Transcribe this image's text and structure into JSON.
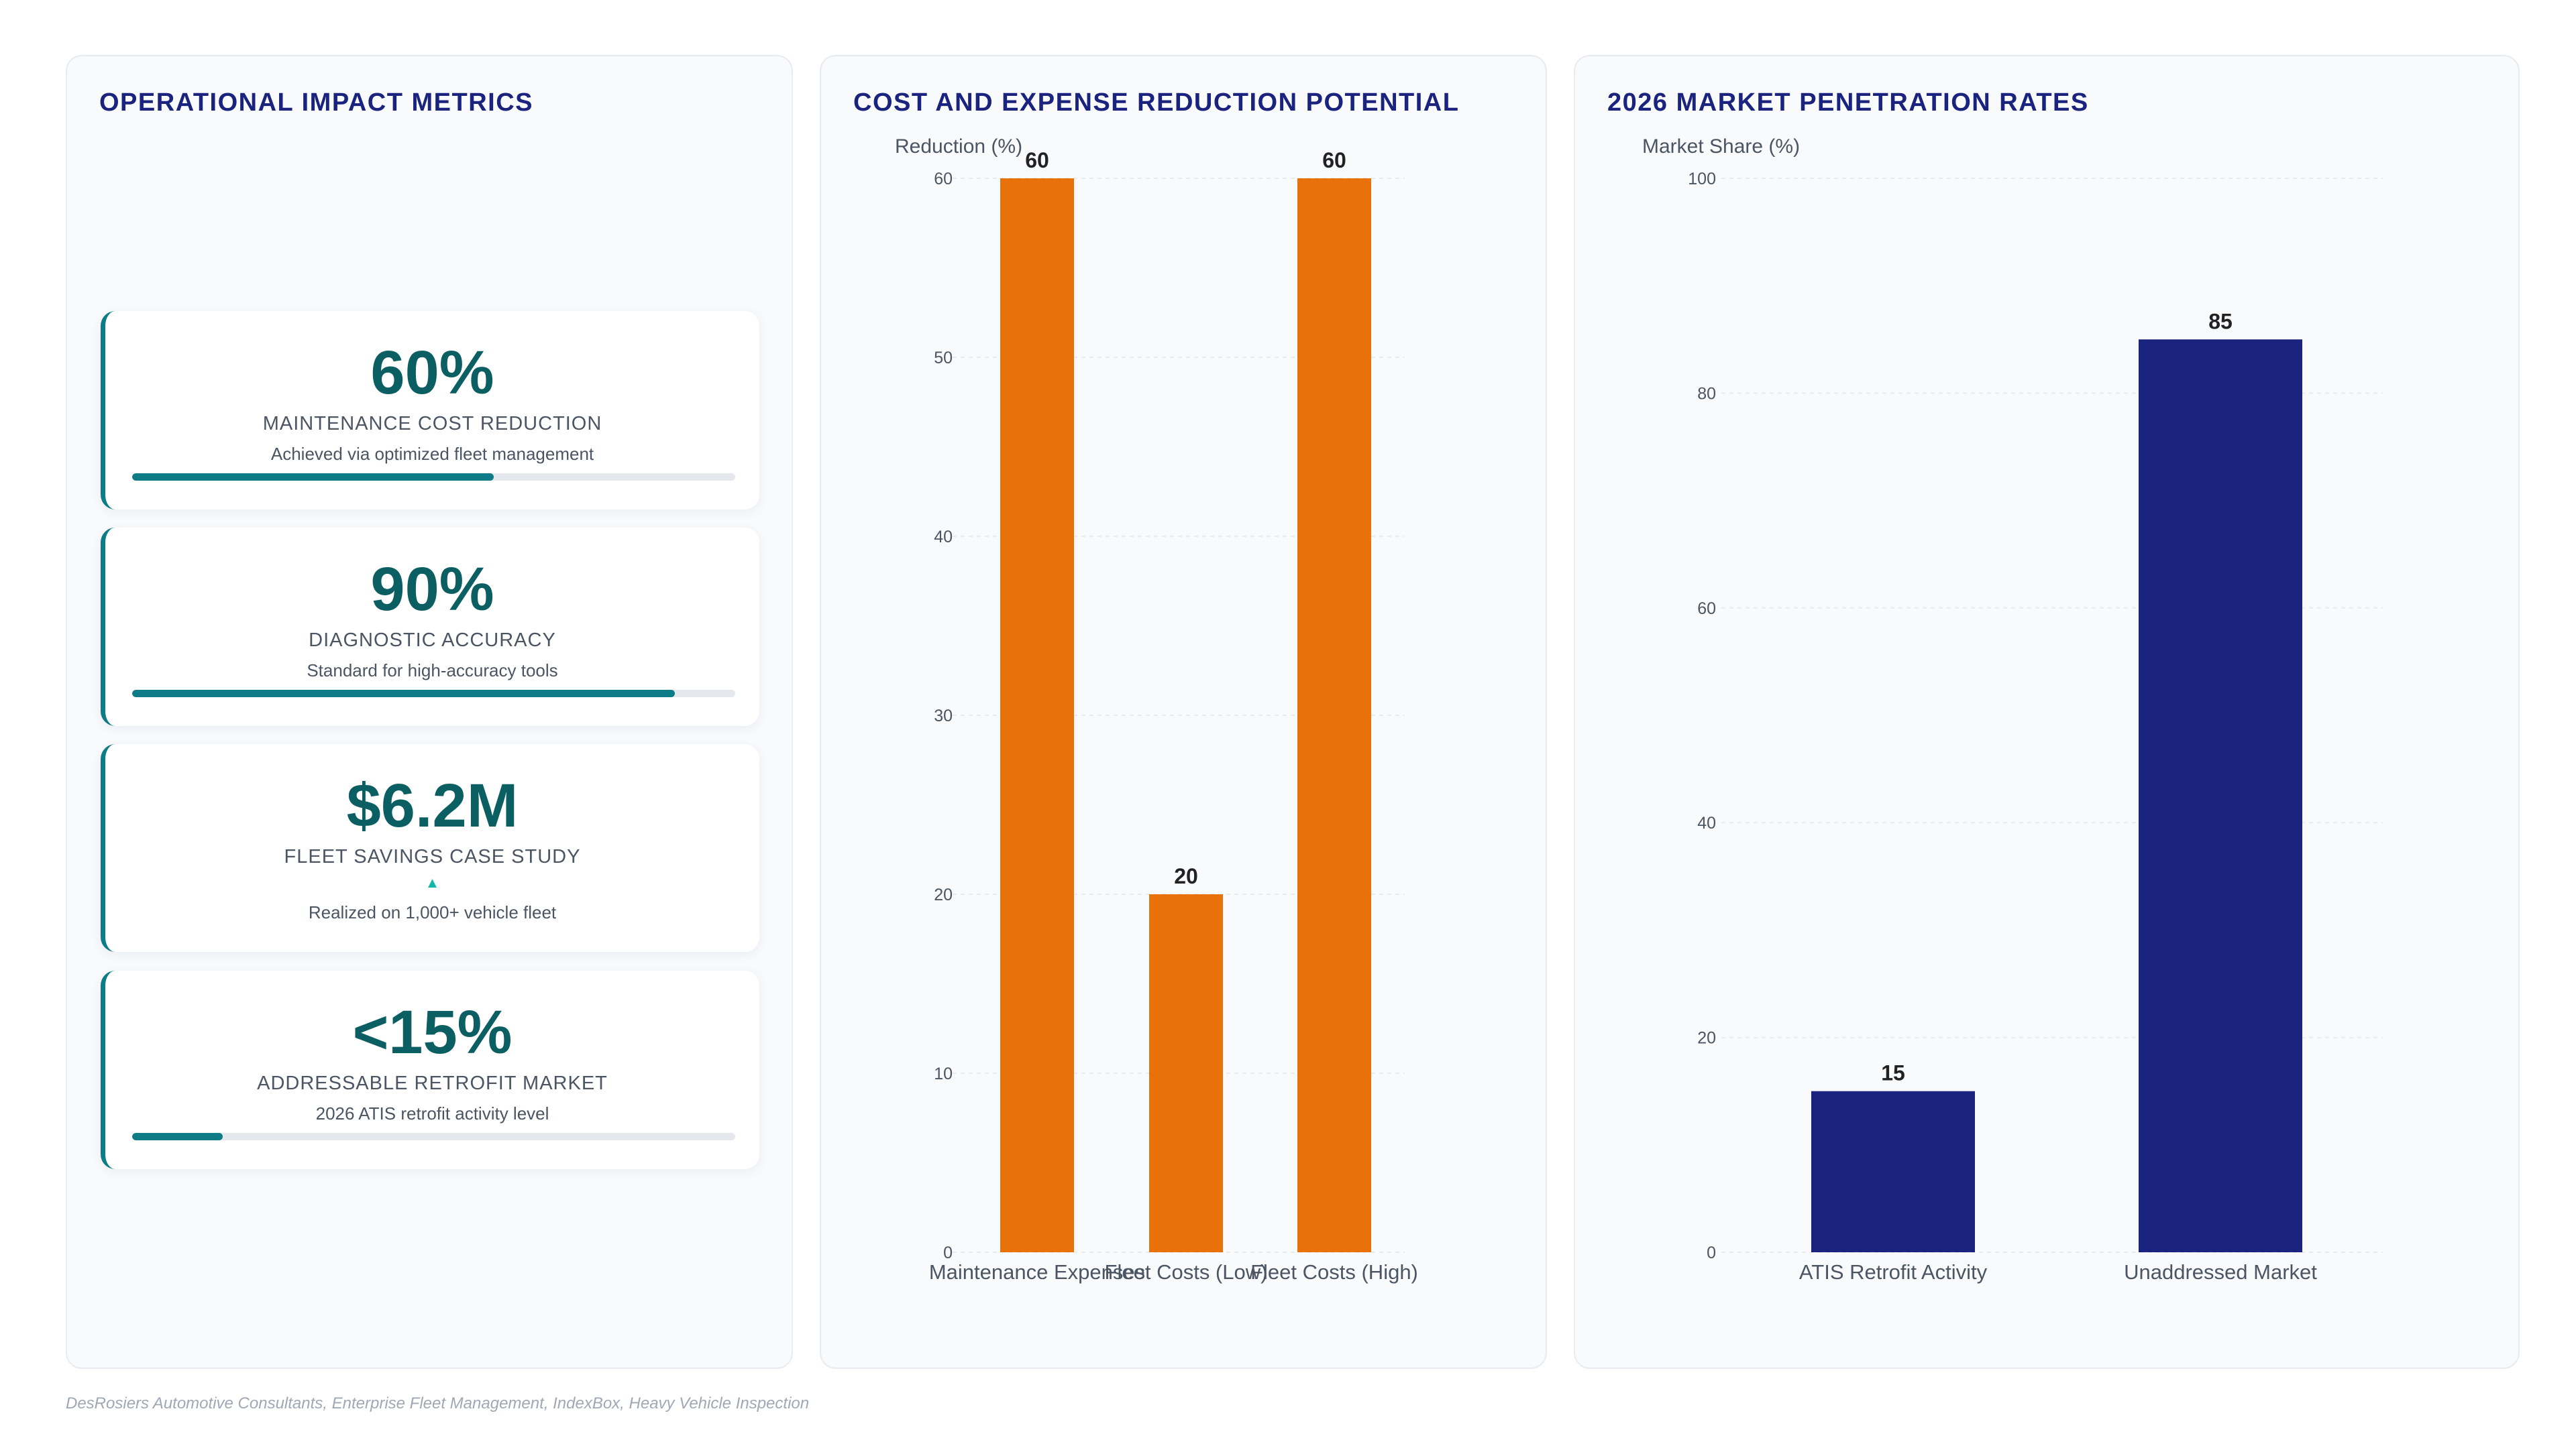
{
  "metrics_panel": {
    "title": "OPERATIONAL IMPACT METRICS",
    "cards": [
      {
        "value": "60%",
        "label": "MAINTENANCE COST REDUCTION",
        "note": "Achieved via optimized fleet management",
        "progress": 0.6
      },
      {
        "value": "90%",
        "label": "DIAGNOSTIC ACCURACY",
        "note": "Standard for high-accuracy tools",
        "progress": 0.9
      },
      {
        "value": "$6.2M",
        "label": "FLEET SAVINGS CASE STUDY",
        "trend": "▲",
        "note": "Realized on 1,000+ vehicle fleet"
      },
      {
        "value": "<15%",
        "label": "ADDRESSABLE RETROFIT MARKET",
        "note": "2026 ATIS retrofit activity level",
        "progress": 0.15
      }
    ]
  },
  "cost_panel": {
    "title": "COST AND EXPENSE REDUCTION POTENTIAL"
  },
  "market_panel": {
    "title": "2026 MARKET PENETRATION RATES"
  },
  "source": "DesRosiers Automotive Consultants, Enterprise Fleet Management, IndexBox, Heavy Vehicle Inspection",
  "colors": {
    "accent": "#0e7c86",
    "cost_bar": "#e8710a",
    "market_bar": "#1a237e",
    "title": "#1a237e"
  },
  "chart_data": [
    {
      "type": "bar",
      "title": "COST AND EXPENSE REDUCTION POTENTIAL",
      "categories": [
        "Maintenance Expenses",
        "Fleet Costs (Low)",
        "Fleet Costs (High)"
      ],
      "values": [
        60,
        20,
        60
      ],
      "ylabel": "Reduction (%)",
      "ylim": [
        0,
        60
      ],
      "yticks": [
        0,
        10,
        20,
        30,
        40,
        50,
        60
      ],
      "grid": true,
      "data_labels": true,
      "color": "#e8710a"
    },
    {
      "type": "bar",
      "title": "2026 MARKET PENETRATION RATES",
      "categories": [
        "ATIS Retrofit Activity",
        "Unaddressed Market"
      ],
      "values": [
        15,
        85
      ],
      "ylabel": "Market Share (%)",
      "ylim": [
        0,
        100
      ],
      "yticks": [
        0,
        20,
        40,
        60,
        80,
        100
      ],
      "grid": true,
      "data_labels": true,
      "color": "#1a237e"
    }
  ]
}
